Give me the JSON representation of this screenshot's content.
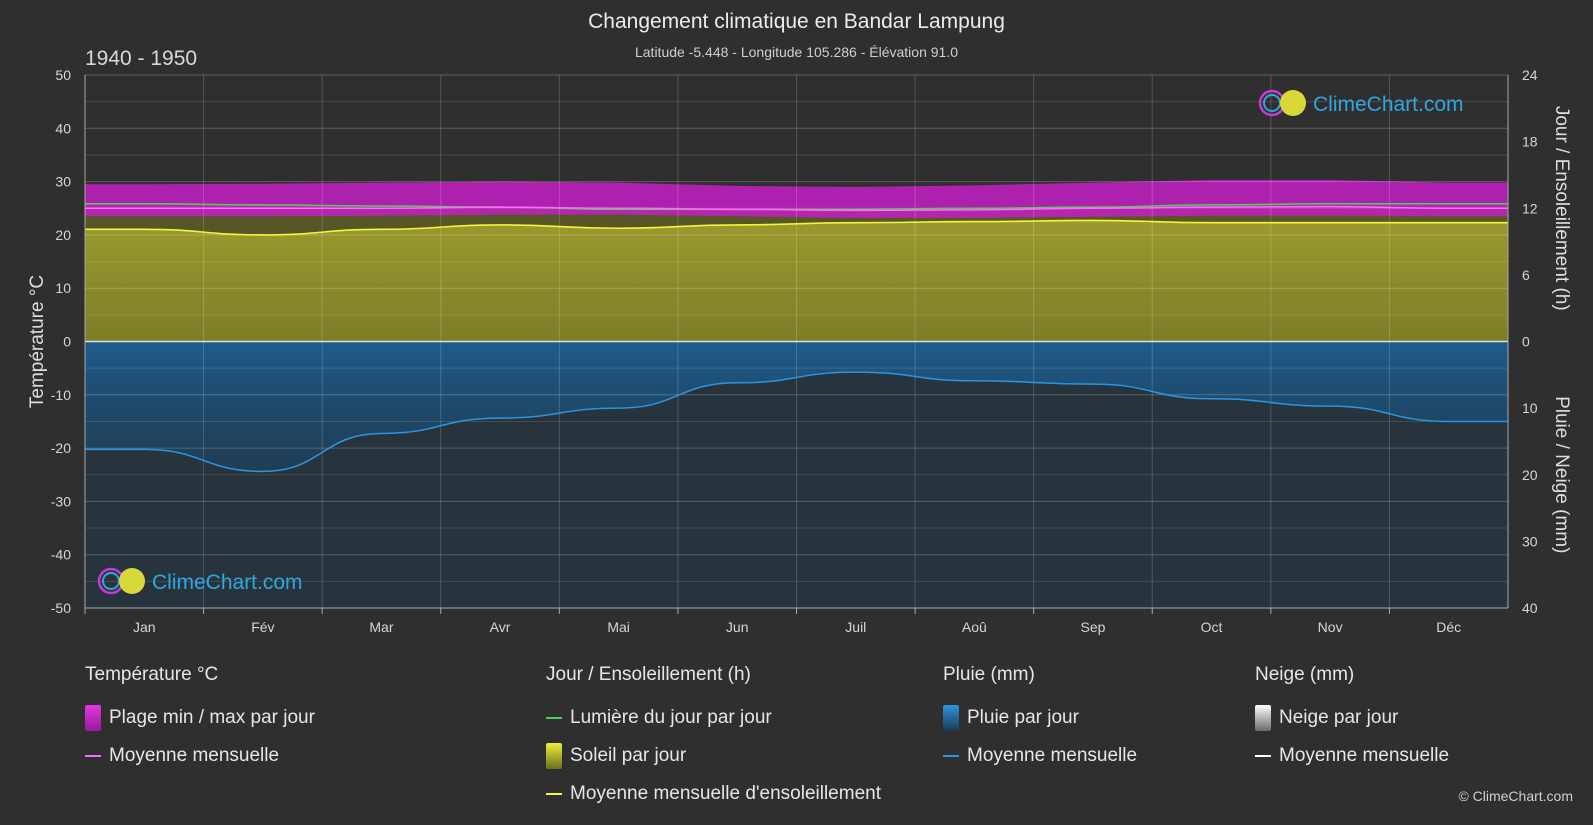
{
  "header": {
    "title": "Changement climatique en Bandar Lampung",
    "subtitle": "Latitude -5.448 - Longitude 105.286 - Élévation 91.0",
    "period": "1940 - 1950"
  },
  "brand": {
    "logo_text": "ClimeChart.com",
    "copyright": "© ClimeChart.com"
  },
  "chart_data": {
    "type": "area",
    "x_categories": [
      "Jan",
      "Fév",
      "Mar",
      "Avr",
      "Mai",
      "Jun",
      "Juil",
      "Aoû",
      "Sep",
      "Oct",
      "Nov",
      "Déc"
    ],
    "y_left": {
      "label": "Température °C",
      "range": [
        -50,
        50
      ],
      "ticks": [
        50,
        40,
        30,
        20,
        10,
        0,
        -10,
        -20,
        -30,
        -40,
        -50
      ]
    },
    "y_right_top": {
      "label": "Jour / Ensoleillement (h)",
      "range": [
        0,
        24
      ],
      "ticks": [
        24,
        18,
        12,
        6,
        0
      ]
    },
    "y_right_bottom": {
      "label": "Pluie / Neige (mm)",
      "range": [
        0,
        40
      ],
      "ticks": [
        0,
        10,
        20,
        30,
        40
      ]
    },
    "grid": true,
    "series": [
      {
        "name": "Plage min / max par jour",
        "kind": "band",
        "unit": "°C",
        "min": [
          23.5,
          23.5,
          23.6,
          23.8,
          23.8,
          23.5,
          23.2,
          23.2,
          23.4,
          23.6,
          23.6,
          23.5
        ],
        "max": [
          29.5,
          29.6,
          29.8,
          30.0,
          29.8,
          29.2,
          29.0,
          29.3,
          29.8,
          30.3,
          30.3,
          29.8
        ]
      },
      {
        "name": "Moyenne mensuelle",
        "kind": "line",
        "unit": "°C",
        "values": [
          25.0,
          25.0,
          25.0,
          25.2,
          25.0,
          24.8,
          24.6,
          24.7,
          25.0,
          25.2,
          25.3,
          25.0
        ]
      },
      {
        "name": "Lumière du jour par jour",
        "kind": "line",
        "unit": "h",
        "values": [
          12.4,
          12.3,
          12.2,
          12.1,
          11.9,
          11.9,
          11.9,
          12.0,
          12.1,
          12.3,
          12.4,
          12.4
        ]
      },
      {
        "name": "Moyenne mensuelle d'ensoleillement",
        "kind": "line",
        "unit": "h",
        "values": [
          10.1,
          9.6,
          10.1,
          10.5,
          10.2,
          10.5,
          10.7,
          10.8,
          10.9,
          10.7,
          10.7,
          10.7
        ]
      },
      {
        "name": "Pluie par jour (moyenne mensuelle)",
        "kind": "line",
        "unit": "mm",
        "values": [
          16.2,
          19.5,
          13.8,
          11.5,
          10.0,
          6.2,
          4.6,
          5.9,
          6.4,
          8.6,
          9.7,
          12.0
        ]
      },
      {
        "name": "Neige par jour",
        "kind": "line",
        "unit": "mm",
        "values": [
          0,
          0,
          0,
          0,
          0,
          0,
          0,
          0,
          0,
          0,
          0,
          0
        ]
      }
    ]
  },
  "legend": {
    "temp": {
      "title": "Température °C",
      "items": [
        "Plage min / max par jour",
        "Moyenne mensuelle"
      ]
    },
    "sun": {
      "title": "Jour / Ensoleillement (h)",
      "items": [
        "Lumière du jour par jour",
        "Soleil par jour",
        "Moyenne mensuelle d'ensoleillement"
      ]
    },
    "rain": {
      "title": "Pluie (mm)",
      "items": [
        "Pluie par jour",
        "Moyenne mensuelle"
      ]
    },
    "snow": {
      "title": "Neige (mm)",
      "items": [
        "Neige par jour",
        "Moyenne mensuelle"
      ]
    }
  },
  "colors": {
    "background": "#2f2f2f",
    "temp_band": "#c41fc4",
    "temp_line": "#ff6bff",
    "daylight": "#4ed34e",
    "sunshine_fill": "#8f8f2a",
    "sunshine_line": "#f5f53a",
    "rain_fill": "#1c5d8f",
    "rain_line": "#2b95e0",
    "snow": "#ffffff"
  }
}
